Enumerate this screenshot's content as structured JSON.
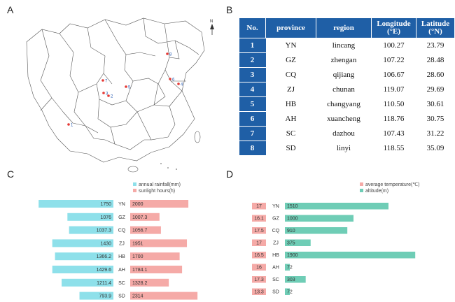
{
  "panel_letters": {
    "a": "A",
    "b": "B",
    "c": "C",
    "d": "D"
  },
  "map": {
    "north_label": "N",
    "site_numbers": [
      "1",
      "2",
      "3",
      "4",
      "5",
      "6",
      "7",
      "8"
    ],
    "marker_color": "#e53935",
    "label_color": "#2b5fb4"
  },
  "table": {
    "headers": [
      "No.",
      "province",
      "region",
      "Longitude (°E)",
      "Latitude (°N)"
    ],
    "header_color": "#1f5fa6",
    "rows": [
      {
        "no": "1",
        "province": "YN",
        "region": "lincang",
        "lon": "100.27",
        "lat": "23.79"
      },
      {
        "no": "2",
        "province": "GZ",
        "region": "zhengan",
        "lon": "107.22",
        "lat": "28.48"
      },
      {
        "no": "3",
        "province": "CQ",
        "region": "qijiang",
        "lon": "106.67",
        "lat": "28.60"
      },
      {
        "no": "4",
        "province": "ZJ",
        "region": "chunan",
        "lon": "119.07",
        "lat": "29.69"
      },
      {
        "no": "5",
        "province": "HB",
        "region": "changyang",
        "lon": "110.50",
        "lat": "30.61"
      },
      {
        "no": "6",
        "province": "AH",
        "region": "xuancheng",
        "lon": "118.76",
        "lat": "30.75"
      },
      {
        "no": "7",
        "province": "SC",
        "region": "dazhou",
        "lon": "107.43",
        "lat": "31.22"
      },
      {
        "no": "8",
        "province": "SD",
        "region": "linyi",
        "lon": "118.55",
        "lat": "35.09"
      }
    ]
  },
  "chart_data": [
    {
      "type": "bar",
      "orientation": "horizontal-diverging",
      "categories": [
        "YN",
        "GZ",
        "CQ",
        "ZJ",
        "HB",
        "AH",
        "SC",
        "SD"
      ],
      "series": [
        {
          "name": "annual rainfall(mm)",
          "color": "#8ee0ea",
          "values": [
            1750,
            1076,
            1037.3,
            1430,
            1366.2,
            1429.6,
            1211.4,
            793.9
          ],
          "labels": [
            "1750",
            "1076",
            "1037.3",
            "1430",
            "1366.2",
            "1429.6",
            "1211.4",
            "793.9"
          ]
        },
        {
          "name": "sunlight hours(h)",
          "color": "#f5aaa7",
          "values": [
            2000,
            1007.3,
            1056.7,
            1951,
            1700,
            1784.1,
            1328.2,
            2314
          ],
          "labels": [
            "2000",
            "1007.3",
            "1056.7",
            "1951",
            "1700",
            "1784.1",
            "1328.2",
            "2314"
          ]
        }
      ],
      "legend": "top-right"
    },
    {
      "type": "bar",
      "orientation": "horizontal",
      "categories": [
        "YN",
        "GZ",
        "CQ",
        "ZJ",
        "HB",
        "AH",
        "SC",
        "SD"
      ],
      "series": [
        {
          "name": "average temperature(℃)",
          "color": "#f5aaa7",
          "values": [
            17,
            16.1,
            17.5,
            17,
            16.5,
            16,
            17.3,
            13.3
          ],
          "labels": [
            "17",
            "16.1",
            "17.5",
            "17",
            "16.5",
            "16",
            "17.3",
            "13.3"
          ]
        },
        {
          "name": "altitude(m)",
          "color": "#6fcdb6",
          "values": [
            1510,
            1000,
            910,
            375,
            1900,
            72,
            303,
            72
          ],
          "labels": [
            "1510",
            "1000",
            "910",
            "375",
            "1900",
            "72",
            "303",
            "72"
          ]
        }
      ],
      "legend": "top-right"
    }
  ]
}
